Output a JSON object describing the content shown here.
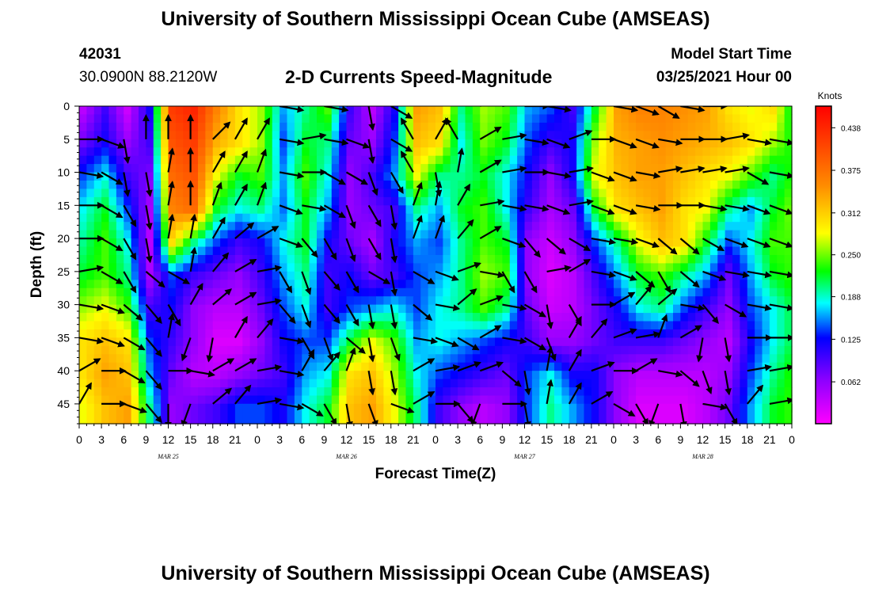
{
  "header": {
    "title_top": "University of Southern Mississippi Ocean Cube (AMSEAS)",
    "title_bottom": "University of Southern Mississippi Ocean Cube (AMSEAS)",
    "station_id": "42031",
    "coordinates": "30.0900N  88.2120W",
    "plot_title": "2-D Currents Speed-Magnitude",
    "model_start_label": "Model Start Time",
    "model_start_value": "03/25/2021 Hour 00"
  },
  "chart_data": {
    "type": "heatmap",
    "title": "2-D Currents Speed-Magnitude",
    "xlabel": "Forecast Time(Z)",
    "ylabel": "Depth (ft)",
    "x_ticks": [
      "0",
      "3",
      "6",
      "9",
      "12",
      "15",
      "18",
      "21",
      "0",
      "3",
      "6",
      "9",
      "12",
      "15",
      "18",
      "21",
      "0",
      "3",
      "6",
      "9",
      "12",
      "15",
      "18",
      "21",
      "0",
      "3",
      "6",
      "9",
      "12",
      "15",
      "18",
      "21",
      "0"
    ],
    "date_labels": [
      "MAR 25",
      "MAR 26",
      "MAR 27",
      "MAR 28"
    ],
    "y_ticks": [
      "0",
      "5",
      "10",
      "15",
      "20",
      "25",
      "30",
      "35",
      "40",
      "45"
    ],
    "ylim": [
      0,
      48
    ],
    "y_inverted": true,
    "colorbar": {
      "unit": "Knots",
      "ticks": [
        "0.438",
        "0.375",
        "0.312",
        "0.250",
        "0.188",
        "0.125",
        "0.062"
      ],
      "range": [
        0,
        0.47
      ]
    },
    "depths": [
      0,
      5,
      10,
      15,
      20,
      25,
      30,
      35,
      40,
      45
    ],
    "hours": [
      0,
      3,
      6,
      9,
      12,
      15,
      18,
      21,
      24,
      27,
      30,
      33,
      36,
      39,
      42,
      45,
      48,
      51,
      54,
      57,
      60,
      63,
      66,
      69,
      72,
      75,
      78,
      81,
      84,
      87,
      90,
      93,
      96
    ],
    "speed": [
      [
        0.04,
        0.1,
        0.03,
        0.12,
        0.42,
        0.44,
        0.36,
        0.3,
        0.26,
        0.16,
        0.2,
        0.24,
        0.1,
        0.04,
        0.12,
        0.34,
        0.32,
        0.2,
        0.26,
        0.24,
        0.16,
        0.14,
        0.1,
        0.22,
        0.34,
        0.36,
        0.36,
        0.35,
        0.34,
        0.3,
        0.28,
        0.3,
        0.2
      ],
      [
        0.08,
        0.12,
        0.06,
        0.1,
        0.4,
        0.42,
        0.33,
        0.3,
        0.26,
        0.14,
        0.22,
        0.2,
        0.08,
        0.06,
        0.14,
        0.32,
        0.3,
        0.18,
        0.25,
        0.22,
        0.14,
        0.1,
        0.12,
        0.26,
        0.33,
        0.34,
        0.35,
        0.34,
        0.33,
        0.32,
        0.3,
        0.26,
        0.22
      ],
      [
        0.14,
        0.18,
        0.1,
        0.07,
        0.38,
        0.4,
        0.28,
        0.22,
        0.24,
        0.16,
        0.24,
        0.18,
        0.06,
        0.1,
        0.16,
        0.28,
        0.2,
        0.2,
        0.22,
        0.18,
        0.12,
        0.06,
        0.12,
        0.28,
        0.32,
        0.34,
        0.34,
        0.32,
        0.3,
        0.28,
        0.24,
        0.2,
        0.24
      ],
      [
        0.18,
        0.22,
        0.14,
        0.05,
        0.36,
        0.38,
        0.22,
        0.18,
        0.2,
        0.15,
        0.22,
        0.16,
        0.06,
        0.08,
        0.1,
        0.2,
        0.16,
        0.22,
        0.24,
        0.18,
        0.1,
        0.05,
        0.08,
        0.22,
        0.3,
        0.32,
        0.34,
        0.3,
        0.28,
        0.2,
        0.16,
        0.22,
        0.26
      ],
      [
        0.2,
        0.24,
        0.18,
        0.04,
        0.3,
        0.2,
        0.14,
        0.1,
        0.12,
        0.18,
        0.22,
        0.12,
        0.08,
        0.05,
        0.12,
        0.16,
        0.14,
        0.2,
        0.24,
        0.22,
        0.06,
        0.03,
        0.06,
        0.14,
        0.2,
        0.28,
        0.32,
        0.3,
        0.22,
        0.14,
        0.18,
        0.24,
        0.24
      ],
      [
        0.22,
        0.24,
        0.2,
        0.05,
        0.14,
        0.1,
        0.08,
        0.06,
        0.1,
        0.16,
        0.2,
        0.1,
        0.12,
        0.08,
        0.1,
        0.14,
        0.16,
        0.2,
        0.26,
        0.24,
        0.06,
        0.02,
        0.04,
        0.1,
        0.16,
        0.22,
        0.24,
        0.2,
        0.16,
        0.08,
        0.16,
        0.22,
        0.24
      ],
      [
        0.26,
        0.28,
        0.24,
        0.1,
        0.12,
        0.06,
        0.04,
        0.04,
        0.08,
        0.14,
        0.18,
        0.1,
        0.14,
        0.16,
        0.18,
        0.14,
        0.18,
        0.2,
        0.24,
        0.2,
        0.08,
        0.03,
        0.04,
        0.08,
        0.12,
        0.18,
        0.2,
        0.14,
        0.1,
        0.06,
        0.14,
        0.18,
        0.22
      ],
      [
        0.3,
        0.32,
        0.3,
        0.14,
        0.1,
        0.06,
        0.02,
        0.02,
        0.06,
        0.12,
        0.14,
        0.14,
        0.22,
        0.28,
        0.24,
        0.16,
        0.18,
        0.16,
        0.14,
        0.12,
        0.1,
        0.06,
        0.06,
        0.08,
        0.1,
        0.1,
        0.1,
        0.08,
        0.06,
        0.04,
        0.12,
        0.18,
        0.22
      ],
      [
        0.3,
        0.34,
        0.32,
        0.16,
        0.08,
        0.04,
        0.04,
        0.06,
        0.08,
        0.1,
        0.16,
        0.18,
        0.3,
        0.32,
        0.26,
        0.18,
        0.14,
        0.12,
        0.1,
        0.08,
        0.14,
        0.18,
        0.12,
        0.12,
        0.06,
        0.04,
        0.04,
        0.04,
        0.04,
        0.06,
        0.14,
        0.2,
        0.24
      ],
      [
        0.28,
        0.32,
        0.34,
        0.2,
        0.06,
        0.08,
        0.1,
        0.14,
        0.14,
        0.12,
        0.18,
        0.22,
        0.32,
        0.34,
        0.28,
        0.2,
        0.1,
        0.06,
        0.04,
        0.06,
        0.14,
        0.2,
        0.16,
        0.12,
        0.06,
        0.02,
        0.02,
        0.02,
        0.04,
        0.08,
        0.16,
        0.22,
        0.24
      ]
    ],
    "vectors_deg": [
      [
        60,
        30,
        0,
        0,
        0,
        0,
        30,
        30,
        30,
        100,
        80,
        100,
        60,
        170,
        120,
        330,
        30,
        330,
        60,
        80,
        90,
        100,
        60,
        80,
        100,
        110,
        120,
        100,
        90,
        80,
        60,
        60,
        100
      ],
      [
        90,
        110,
        170,
        0,
        0,
        0,
        45,
        30,
        30,
        100,
        80,
        100,
        110,
        170,
        120,
        330,
        30,
        330,
        60,
        80,
        100,
        110,
        70,
        90,
        110,
        110,
        100,
        90,
        90,
        80,
        100,
        100,
        110
      ],
      [
        100,
        120,
        170,
        170,
        10,
        0,
        30,
        30,
        20,
        100,
        90,
        120,
        120,
        160,
        150,
        330,
        170,
        10,
        60,
        80,
        90,
        100,
        80,
        110,
        110,
        100,
        80,
        80,
        80,
        80,
        120,
        100,
        110
      ],
      [
        90,
        120,
        150,
        170,
        10,
        0,
        20,
        30,
        20,
        110,
        100,
        120,
        160,
        150,
        170,
        20,
        10,
        30,
        80,
        100,
        100,
        110,
        80,
        110,
        110,
        100,
        90,
        90,
        100,
        100,
        110,
        110,
        110
      ],
      [
        90,
        120,
        150,
        170,
        10,
        10,
        30,
        50,
        60,
        110,
        140,
        150,
        160,
        150,
        170,
        20,
        20,
        40,
        60,
        110,
        140,
        130,
        120,
        100,
        100,
        110,
        130,
        130,
        120,
        110,
        110,
        110,
        110
      ],
      [
        80,
        120,
        150,
        130,
        120,
        10,
        40,
        60,
        80,
        150,
        160,
        140,
        150,
        120,
        170,
        120,
        110,
        70,
        100,
        150,
        150,
        80,
        60,
        100,
        110,
        130,
        150,
        130,
        110,
        100,
        100,
        100,
        100
      ],
      [
        100,
        110,
        130,
        140,
        150,
        30,
        50,
        60,
        80,
        140,
        160,
        140,
        150,
        170,
        170,
        130,
        100,
        50,
        70,
        100,
        120,
        170,
        150,
        90,
        60,
        40,
        50,
        100,
        140,
        120,
        100,
        100,
        100
      ],
      [
        100,
        110,
        120,
        140,
        10,
        200,
        190,
        30,
        40,
        100,
        150,
        160,
        130,
        170,
        160,
        100,
        110,
        120,
        60,
        100,
        120,
        160,
        30,
        40,
        70,
        80,
        20,
        60,
        190,
        170,
        90,
        90,
        100
      ],
      [
        60,
        90,
        120,
        140,
        90,
        100,
        60,
        60,
        80,
        100,
        30,
        40,
        20,
        170,
        170,
        60,
        80,
        70,
        70,
        130,
        170,
        10,
        30,
        70,
        90,
        60,
        100,
        130,
        160,
        170,
        80,
        80,
        90
      ],
      [
        30,
        90,
        110,
        140,
        180,
        200,
        50,
        40,
        80,
        100,
        120,
        150,
        170,
        160,
        110,
        60,
        90,
        140,
        200,
        90,
        170,
        10,
        30,
        60,
        120,
        150,
        200,
        170,
        100,
        150,
        40,
        80,
        90
      ]
    ]
  }
}
